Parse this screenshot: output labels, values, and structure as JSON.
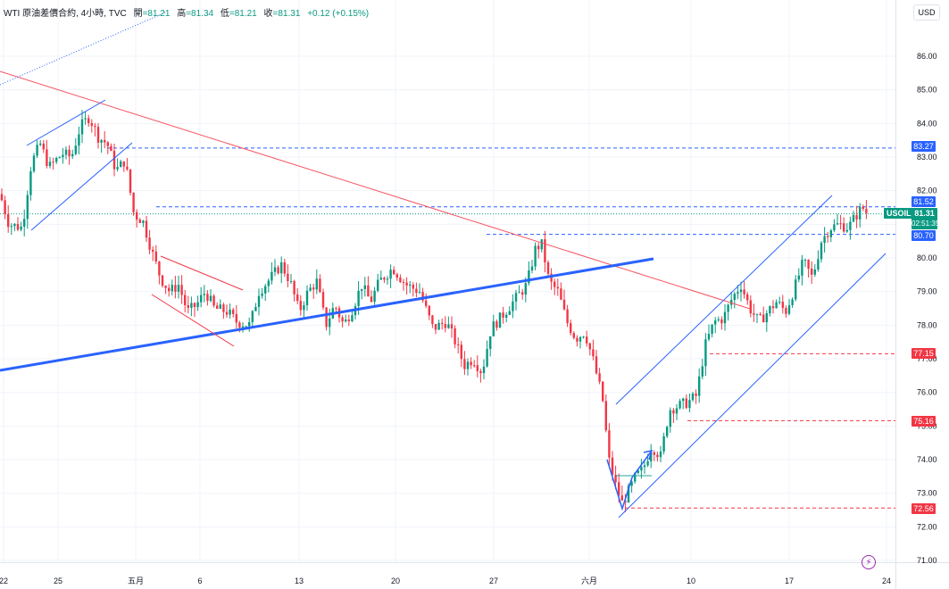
{
  "header": {
    "symbol_info": "WTI 原油差價合約, 4小時, TVC",
    "open_label": "開",
    "open_value": "=81.21",
    "high_label": "高",
    "high_value": "=81.34",
    "low_label": "低",
    "low_value": "=81.21",
    "close_label": "收",
    "close_value": "=81.31",
    "change": "+0.12 (+0.15%)"
  },
  "currency": "USD",
  "symbol_tag": "USOIL",
  "last_price": "81.31",
  "countdown": "02:51:35",
  "price_labels": {
    "p83_27": "83.27",
    "p81_52": "81.52",
    "p80_70": "80.70",
    "p77_15": "77.15",
    "p75_16": "75.16",
    "p72_56": "72.56"
  },
  "colors": {
    "up": "#089981",
    "down": "#f23645",
    "blue_line": "#2962ff",
    "red_line": "#f23645",
    "label_blue": "#2962ff",
    "label_red": "#f23645"
  },
  "chart_data": {
    "type": "candlestick",
    "timeframe": "4h",
    "y_ticks": [
      "86.00",
      "85.00",
      "84.00",
      "83.00",
      "82.00",
      "81.00",
      "80.00",
      "79.00",
      "78.00",
      "77.00",
      "76.00",
      "75.00",
      "74.00",
      "73.00",
      "72.00",
      "71.00"
    ],
    "ylim": [
      70.6,
      86.6
    ],
    "x_ticks": [
      "22",
      "25",
      "五月",
      "6",
      "13",
      "20",
      "27",
      "六月",
      "10",
      "17",
      "24"
    ],
    "close_path": [
      [
        0,
        81.9
      ],
      [
        10,
        81.0
      ],
      [
        25,
        80.9
      ],
      [
        35,
        82.8
      ],
      [
        45,
        83.4
      ],
      [
        55,
        82.7
      ],
      [
        70,
        83.1
      ],
      [
        80,
        83.0
      ],
      [
        90,
        83.9
      ],
      [
        100,
        84.2
      ],
      [
        110,
        83.6
      ],
      [
        120,
        83.4
      ],
      [
        130,
        82.6
      ],
      [
        140,
        82.9
      ],
      [
        150,
        81.3
      ],
      [
        160,
        81.1
      ],
      [
        170,
        80.2
      ],
      [
        180,
        79.4
      ],
      [
        190,
        79.0
      ],
      [
        200,
        79.2
      ],
      [
        210,
        78.4
      ],
      [
        220,
        78.6
      ],
      [
        230,
        79.0
      ],
      [
        240,
        78.5
      ],
      [
        255,
        78.4
      ],
      [
        265,
        78.1
      ],
      [
        280,
        78.0
      ],
      [
        290,
        79.0
      ],
      [
        300,
        79.3
      ],
      [
        315,
        79.8
      ],
      [
        325,
        79.3
      ],
      [
        335,
        78.4
      ],
      [
        345,
        79.0
      ],
      [
        355,
        79.3
      ],
      [
        365,
        78.0
      ],
      [
        375,
        78.6
      ],
      [
        385,
        78.0
      ],
      [
        395,
        78.5
      ],
      [
        405,
        79.2
      ],
      [
        415,
        78.7
      ],
      [
        425,
        79.3
      ],
      [
        440,
        79.7
      ],
      [
        455,
        79.2
      ],
      [
        470,
        79.0
      ],
      [
        485,
        77.9
      ],
      [
        500,
        78.1
      ],
      [
        510,
        77.5
      ],
      [
        520,
        76.8
      ],
      [
        530,
        77.0
      ],
      [
        540,
        76.6
      ],
      [
        550,
        77.9
      ],
      [
        560,
        78.2
      ],
      [
        575,
        78.7
      ],
      [
        590,
        79.2
      ],
      [
        600,
        80.3
      ],
      [
        607,
        80.4
      ],
      [
        615,
        79.3
      ],
      [
        625,
        79.0
      ],
      [
        635,
        78.1
      ],
      [
        645,
        77.6
      ],
      [
        655,
        77.8
      ],
      [
        665,
        76.9
      ],
      [
        675,
        75.8
      ],
      [
        682,
        74.0
      ],
      [
        690,
        73.2
      ],
      [
        697,
        72.7
      ],
      [
        705,
        73.1
      ],
      [
        712,
        73.5
      ],
      [
        720,
        73.7
      ],
      [
        730,
        74.4
      ],
      [
        740,
        74.1
      ],
      [
        750,
        75.5
      ],
      [
        760,
        75.6
      ],
      [
        770,
        75.7
      ],
      [
        780,
        75.9
      ],
      [
        790,
        77.4
      ],
      [
        800,
        78.1
      ],
      [
        810,
        78.2
      ],
      [
        820,
        78.8
      ],
      [
        830,
        79.2
      ],
      [
        840,
        78.5
      ],
      [
        850,
        78.1
      ],
      [
        860,
        78.4
      ],
      [
        870,
        78.7
      ],
      [
        880,
        78.4
      ],
      [
        890,
        79.1
      ],
      [
        900,
        79.9
      ],
      [
        910,
        79.4
      ],
      [
        920,
        80.5
      ],
      [
        930,
        80.9
      ],
      [
        940,
        81.0
      ],
      [
        950,
        80.9
      ],
      [
        960,
        81.3
      ],
      [
        966,
        81.5
      ],
      [
        972,
        81.31
      ]
    ]
  }
}
